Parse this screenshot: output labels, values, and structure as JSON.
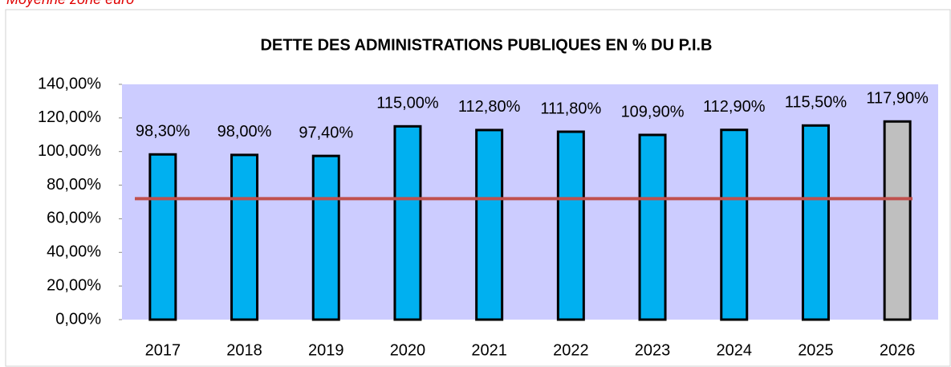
{
  "chart_data": {
    "type": "bar",
    "title": "DETTE DES ADMINISTRATIONS PUBLIQUES EN % DU P.I.B",
    "categories": [
      "2017",
      "2018",
      "2019",
      "2020",
      "2021",
      "2022",
      "2023",
      "2024",
      "2025",
      "2026"
    ],
    "values": [
      98.3,
      98.0,
      97.4,
      115.0,
      112.8,
      111.8,
      109.9,
      112.9,
      115.5,
      117.9
    ],
    "value_labels": [
      "98,30%",
      "98,00%",
      "97,40%",
      "115,00%",
      "112,80%",
      "111,80%",
      "109,90%",
      "112,90%",
      "115,50%",
      "117,90%"
    ],
    "colors": [
      "#00b0f0",
      "#00b0f0",
      "#00b0f0",
      "#00b0f0",
      "#00b0f0",
      "#00b0f0",
      "#00b0f0",
      "#00b0f0",
      "#00b0f0",
      "#bfbfbf"
    ],
    "reference": {
      "label": "Moyenne zone euro",
      "value": 72,
      "color": "#c0504d"
    },
    "ylim": [
      0,
      140
    ],
    "yticks": [
      {
        "value": 0,
        "label": "0,00%"
      },
      {
        "value": 20,
        "label": "20,00%"
      },
      {
        "value": 40,
        "label": "40,00%"
      },
      {
        "value": 60,
        "label": "60,00%"
      },
      {
        "value": 80,
        "label": "80,00%"
      },
      {
        "value": 100,
        "label": "100,00%"
      },
      {
        "value": 120,
        "label": "120,00%"
      },
      {
        "value": 140,
        "label": "140,00%"
      }
    ],
    "plot_background": "#ccccff"
  }
}
